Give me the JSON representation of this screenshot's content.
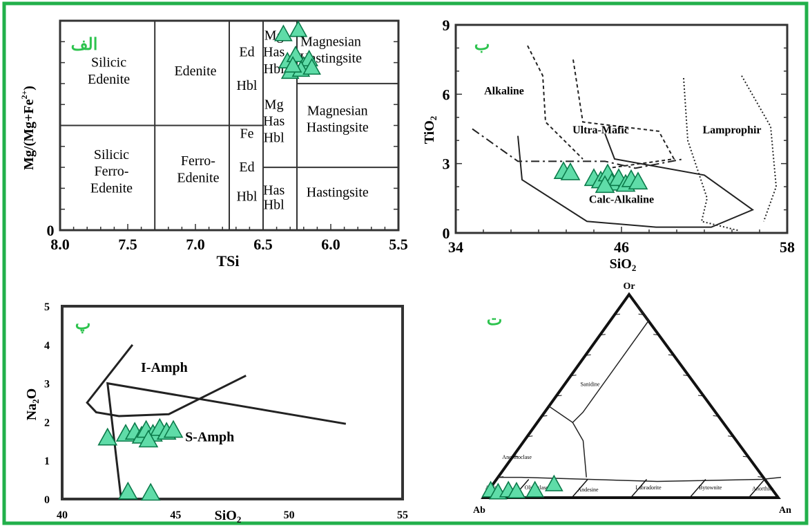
{
  "colors": {
    "border": "#22b04b",
    "marker": "#5fdca8",
    "marker_edge": "#0b7a4a",
    "label_arabic": "#2dc34e",
    "ink": "#000000",
    "line": "#222222"
  },
  "chart_data": [
    {
      "type": "scatter",
      "panel_label": "الف",
      "xlabel": "TSi",
      "ylabel": "Mg/(Mg+Fe",
      "ylabel_sup": "2+",
      "ylabel_close": ")",
      "xlim": [
        8.0,
        5.5
      ],
      "ylim": [
        0,
        1
      ],
      "x_ticks": [
        "8.0",
        "7.5",
        "7.0",
        "6.5",
        "6.0",
        "5.5"
      ],
      "y_ticks": [
        "0"
      ],
      "field_labels": [
        {
          "text": "Silicic",
          "x": 7.64,
          "y": 0.78
        },
        {
          "text": "Edenite",
          "x": 7.64,
          "y": 0.7
        },
        {
          "text": "Edenite",
          "x": 7.0,
          "y": 0.74
        },
        {
          "text": "Ed",
          "x": 6.62,
          "y": 0.83
        },
        {
          "text": "Hbl",
          "x": 6.62,
          "y": 0.67
        },
        {
          "text": "Mg",
          "x": 6.42,
          "y": 0.91
        },
        {
          "text": "Has",
          "x": 6.42,
          "y": 0.83
        },
        {
          "text": "Hbl",
          "x": 6.42,
          "y": 0.75
        },
        {
          "text": "Magnesian",
          "x": 6.0,
          "y": 0.88
        },
        {
          "text": "Hastingsite",
          "x": 6.0,
          "y": 0.8
        },
        {
          "text": "Mg",
          "x": 6.42,
          "y": 0.58
        },
        {
          "text": "Has",
          "x": 6.42,
          "y": 0.5
        },
        {
          "text": "Hbl",
          "x": 6.42,
          "y": 0.42
        },
        {
          "text": "Magnesian",
          "x": 5.95,
          "y": 0.55
        },
        {
          "text": "Hastingsite",
          "x": 5.95,
          "y": 0.47
        },
        {
          "text": "Fe",
          "x": 6.62,
          "y": 0.44
        },
        {
          "text": "Ed",
          "x": 6.62,
          "y": 0.28
        },
        {
          "text": "Hbl",
          "x": 6.62,
          "y": 0.14
        },
        {
          "text": "Silicic",
          "x": 7.62,
          "y": 0.34
        },
        {
          "text": "Ferro-",
          "x": 7.62,
          "y": 0.26
        },
        {
          "text": "Edenite",
          "x": 7.62,
          "y": 0.18
        },
        {
          "text": "Ferro-",
          "x": 6.98,
          "y": 0.31
        },
        {
          "text": "Edenite",
          "x": 6.98,
          "y": 0.23
        },
        {
          "text": "Has",
          "x": 6.42,
          "y": 0.17
        },
        {
          "text": "Hbl",
          "x": 6.42,
          "y": 0.1
        },
        {
          "text": "Hastingsite",
          "x": 5.95,
          "y": 0.16
        }
      ],
      "points": [
        {
          "x": 6.35,
          "y": 0.93
        },
        {
          "x": 6.24,
          "y": 0.95
        },
        {
          "x": 6.32,
          "y": 0.8
        },
        {
          "x": 6.26,
          "y": 0.83
        },
        {
          "x": 6.2,
          "y": 0.78
        },
        {
          "x": 6.16,
          "y": 0.81
        },
        {
          "x": 6.3,
          "y": 0.75
        },
        {
          "x": 6.22,
          "y": 0.76
        },
        {
          "x": 6.14,
          "y": 0.77
        },
        {
          "x": 6.28,
          "y": 0.78
        }
      ]
    },
    {
      "type": "scatter",
      "panel_label": "ب",
      "xlabel": "SiO",
      "xlabel_sub": "2",
      "ylabel": "TiO",
      "ylabel_sub": "2",
      "xlim": [
        34,
        58
      ],
      "ylim": [
        0,
        9
      ],
      "x_ticks": [
        "34",
        "46",
        "58"
      ],
      "y_ticks": [
        "0",
        "3",
        "6",
        "9"
      ],
      "field_labels": [
        {
          "text": "Alkaline",
          "x": 37.5,
          "y": 6.0
        },
        {
          "text": "Ultra-Mafic",
          "x": 44.5,
          "y": 4.3
        },
        {
          "text": "Lamprophir",
          "x": 54.0,
          "y": 4.3
        },
        {
          "text": "Calc-Alkaline",
          "x": 46.0,
          "y": 1.3
        }
      ],
      "points": [
        {
          "x": 41.8,
          "y": 2.6
        },
        {
          "x": 42.3,
          "y": 2.55
        },
        {
          "x": 44.0,
          "y": 2.3
        },
        {
          "x": 44.5,
          "y": 2.2
        },
        {
          "x": 45.0,
          "y": 2.5
        },
        {
          "x": 45.3,
          "y": 2.1
        },
        {
          "x": 45.8,
          "y": 2.3
        },
        {
          "x": 46.3,
          "y": 2.05
        },
        {
          "x": 46.7,
          "y": 2.25
        },
        {
          "x": 47.2,
          "y": 2.15
        },
        {
          "x": 44.8,
          "y": 2.0
        }
      ]
    },
    {
      "type": "scatter",
      "panel_label": "پ",
      "xlabel": "SiO",
      "xlabel_sub": "2",
      "ylabel": "Na",
      "ylabel_sub": "2",
      "ylabel_tail": "O",
      "xlim": [
        40,
        55
      ],
      "ylim": [
        0,
        5
      ],
      "x_ticks": [
        "40",
        "45",
        "50",
        "55"
      ],
      "y_ticks": [
        "0",
        "1",
        "2",
        "3",
        "4",
        "5"
      ],
      "field_labels": [
        {
          "text": "I-Amph",
          "x": 44.5,
          "y": 3.3
        },
        {
          "text": "S-Amph",
          "x": 46.5,
          "y": 1.5
        }
      ],
      "points": [
        {
          "x": 42.0,
          "y": 1.55
        },
        {
          "x": 42.8,
          "y": 1.65
        },
        {
          "x": 43.2,
          "y": 1.7
        },
        {
          "x": 43.5,
          "y": 1.6
        },
        {
          "x": 43.7,
          "y": 1.75
        },
        {
          "x": 44.0,
          "y": 1.65
        },
        {
          "x": 44.3,
          "y": 1.8
        },
        {
          "x": 43.8,
          "y": 1.5
        },
        {
          "x": 44.6,
          "y": 1.7
        },
        {
          "x": 44.9,
          "y": 1.75
        },
        {
          "x": 42.9,
          "y": 0.15
        },
        {
          "x": 43.9,
          "y": 0.12
        }
      ]
    },
    {
      "type": "ternary",
      "panel_label": "ت",
      "apex_labels": {
        "top": "Or",
        "left": "Ab",
        "right": "An"
      },
      "field_labels": [
        {
          "text": "Sanidine"
        },
        {
          "text": "Anorthoclase"
        },
        {
          "text": "Albite"
        },
        {
          "text": "Oligoclase"
        },
        {
          "text": "Andesine"
        },
        {
          "text": "Labradorite"
        },
        {
          "text": "Bytownite"
        },
        {
          "text": "Anorthite"
        }
      ],
      "points": [
        {
          "an": 0.01,
          "or": 0.03
        },
        {
          "an": 0.04,
          "or": 0.02
        },
        {
          "an": 0.07,
          "or": 0.03
        },
        {
          "an": 0.1,
          "or": 0.025
        },
        {
          "an": 0.16,
          "or": 0.03
        },
        {
          "an": 0.21,
          "or": 0.06
        }
      ]
    }
  ]
}
